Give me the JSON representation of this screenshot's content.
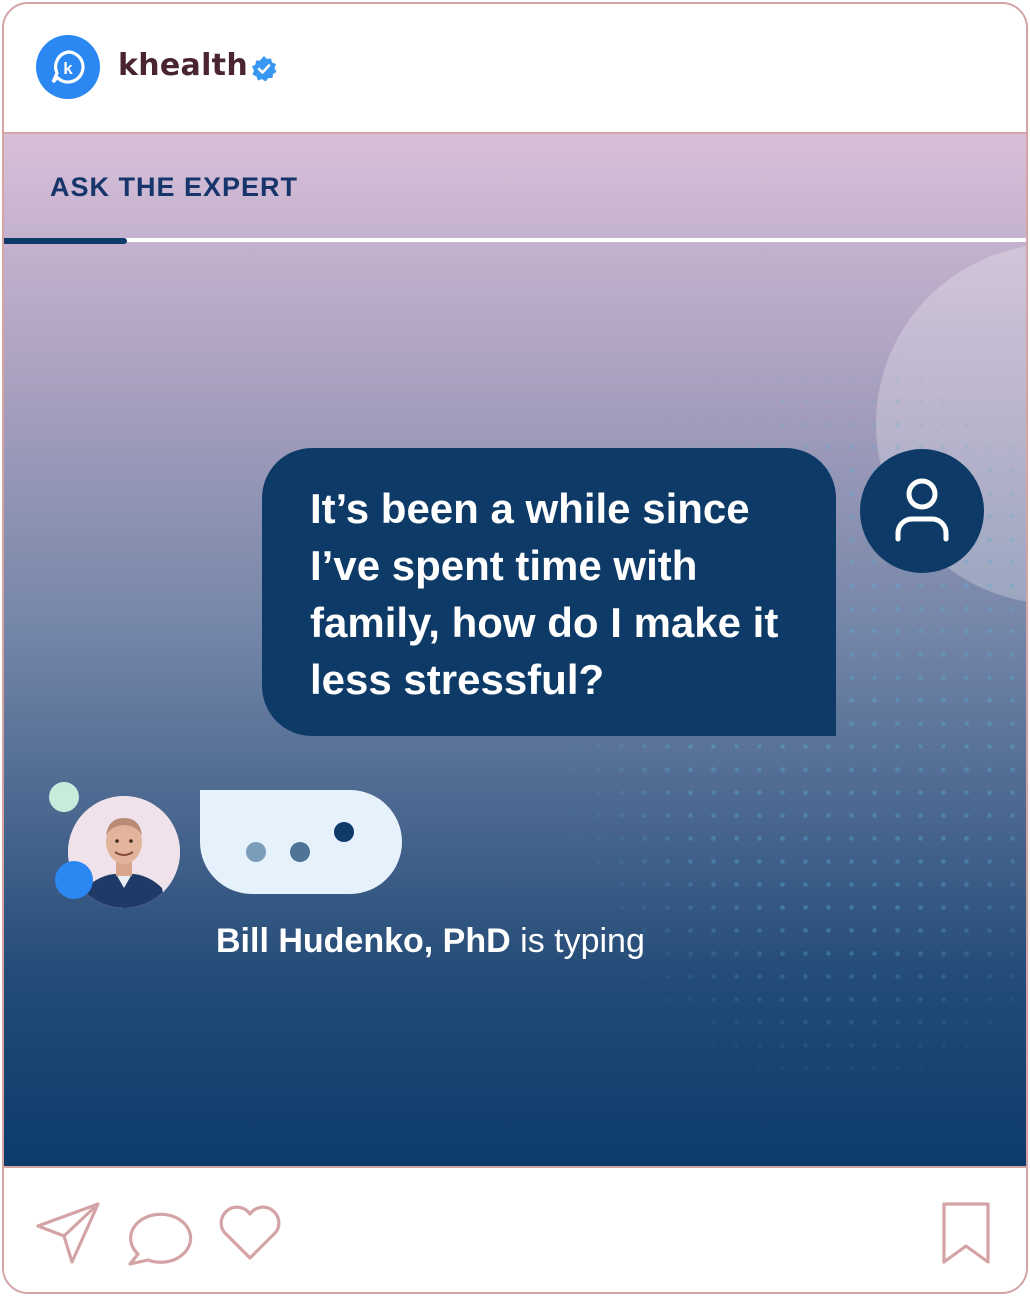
{
  "header": {
    "account_name": "khealth",
    "logo_letter": "k",
    "verified_icon": "verified-badge-icon"
  },
  "post": {
    "kicker": "ASK THE EXPERT",
    "question": "It’s been a while since I’ve spent time with family, how do I make it less stressful?",
    "expert_name": "Bill Hudenko, PhD",
    "typing_suffix": " is typing",
    "story_progress": 0.12
  },
  "footer": {
    "icons": [
      "send-icon",
      "comment-icon",
      "heart-icon",
      "bookmark-icon"
    ]
  },
  "colors": {
    "border": "#d4a3a5",
    "navy": "#0d3a67",
    "brand_blue": "#2b87f2",
    "account_text": "#4a2433",
    "typing_bubble": "#e6f2fb",
    "mint": "#c7ecd9"
  }
}
